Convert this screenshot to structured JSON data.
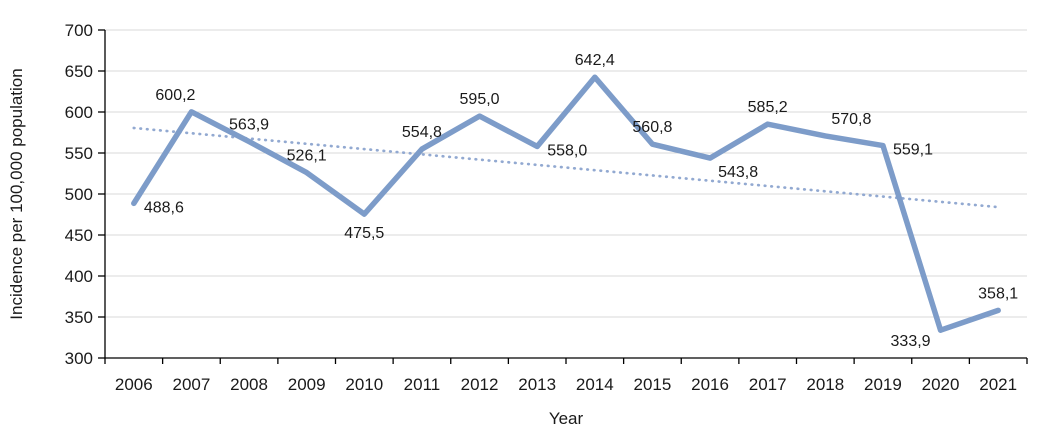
{
  "chart_data": {
    "type": "line",
    "title": "",
    "xlabel": "Year",
    "ylabel": "Incidence per 100,000 population",
    "ylim": [
      300,
      700
    ],
    "yticks": [
      300,
      350,
      400,
      450,
      500,
      550,
      600,
      650,
      700
    ],
    "categories": [
      "2006",
      "2007",
      "2008",
      "2009",
      "2010",
      "2011",
      "2012",
      "2013",
      "2014",
      "2015",
      "2016",
      "2017",
      "2018",
      "2019",
      "2020",
      "2021"
    ],
    "series": [
      {
        "values": [
          488.6,
          600.2,
          563.9,
          526.1,
          475.5,
          554.8,
          595.0,
          558.0,
          642.4,
          560.8,
          543.8,
          585.2,
          570.8,
          559.1,
          333.9,
          358.1
        ],
        "labels": [
          "488,6",
          "600,2",
          "563,9",
          "526,1",
          "475,5",
          "554,8",
          "595,0",
          "558,0",
          "642,4",
          "560,8",
          "543,8",
          "585,2",
          "570,8",
          "559,1",
          "333,9",
          "358,1"
        ],
        "label_positions": [
          "right",
          "above-left",
          "above",
          "above",
          "below",
          "above",
          "above",
          "right",
          "above",
          "above",
          "below-right",
          "above",
          "above-right",
          "right",
          "left",
          "above"
        ],
        "color": "#7D9CC9"
      }
    ],
    "trendline": {
      "type": "linear",
      "style": "dotted",
      "start_value": 580.5,
      "end_value": 484,
      "color": "#92A9D1"
    },
    "grid": true,
    "legend": "none",
    "colors": {
      "gridline": "#D9D9D9",
      "axis": "#000000",
      "text": "#1a1a1a"
    }
  }
}
